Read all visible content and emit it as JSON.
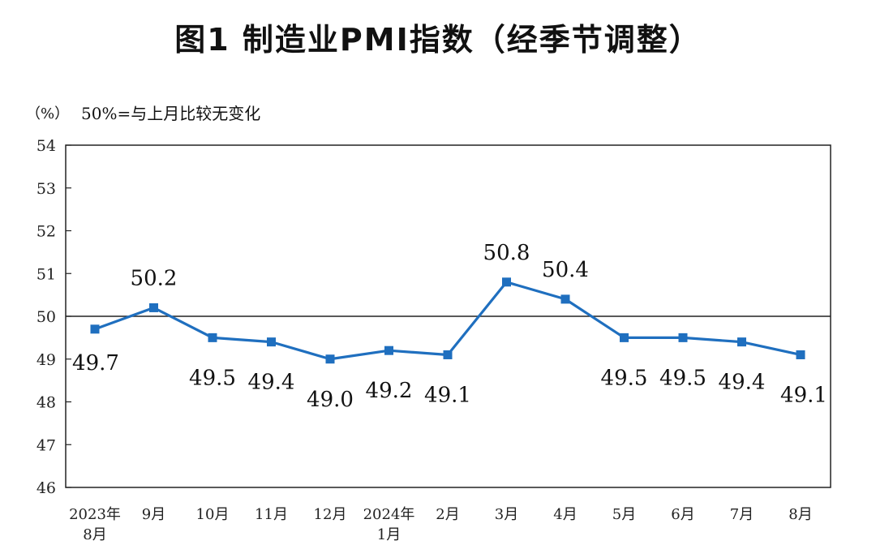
{
  "chart_data": {
    "type": "line",
    "title": "图1  制造业PMI指数（经季节调整）",
    "unit_label": "（%）",
    "reference_note": "50%=与上月比较无变化",
    "reference_value": 50,
    "categories": [
      [
        "2023年",
        "8月"
      ],
      [
        "9月"
      ],
      [
        "10月"
      ],
      [
        "11月"
      ],
      [
        "12月"
      ],
      [
        "2024年",
        "1月"
      ],
      [
        "2月"
      ],
      [
        "3月"
      ],
      [
        "4月"
      ],
      [
        "5月"
      ],
      [
        "6月"
      ],
      [
        "7月"
      ],
      [
        "8月"
      ]
    ],
    "series": [
      {
        "values": [
          49.7,
          50.2,
          49.5,
          49.4,
          49.0,
          49.2,
          49.1,
          50.8,
          50.4,
          49.5,
          49.5,
          49.4,
          49.1
        ],
        "labels": [
          "49.7",
          "50.2",
          "49.5",
          "49.4",
          "49.0",
          "49.2",
          "49.1",
          "50.8",
          "50.4",
          "49.5",
          "49.5",
          "49.4",
          "49.1"
        ]
      }
    ],
    "ylim": [
      46,
      54
    ],
    "yticks": [
      "46",
      "47",
      "48",
      "49",
      "50",
      "51",
      "52",
      "53",
      "54"
    ],
    "grid": false,
    "line_color": "#1f6fbf"
  }
}
